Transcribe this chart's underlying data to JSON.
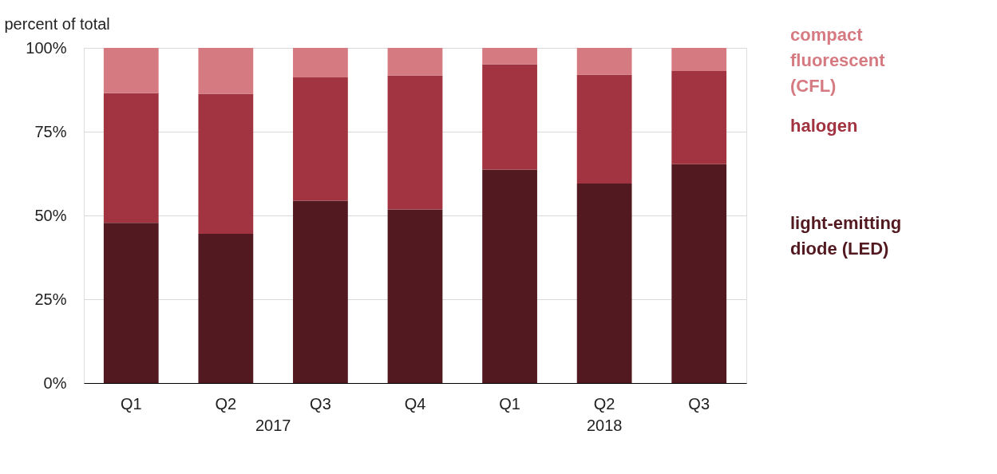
{
  "chart_data": {
    "type": "bar",
    "stacked": true,
    "ylabel": "percent of total",
    "categories": [
      "Q1",
      "Q2",
      "Q3",
      "Q4",
      "Q1",
      "Q2",
      "Q3"
    ],
    "series": [
      {
        "name": "light-emitting diode (LED)",
        "color": "#521a20",
        "values": [
          47.8,
          44.5,
          54.4,
          51.8,
          63.7,
          59.5,
          65.3
        ]
      },
      {
        "name": "halogen",
        "color": "#a23340",
        "values": [
          38.7,
          41.8,
          36.8,
          40.0,
          31.4,
          32.5,
          27.8
        ]
      },
      {
        "name": "compact fluorescent (CFL)",
        "color": "#d67a82",
        "values": [
          13.5,
          13.7,
          8.8,
          8.2,
          4.9,
          8.0,
          6.9
        ]
      }
    ],
    "ylim": [
      0,
      100
    ],
    "yticks": [
      {
        "value": 0,
        "label": "0%"
      },
      {
        "value": 25,
        "label": "25%"
      },
      {
        "value": 50,
        "label": "50%"
      },
      {
        "value": 75,
        "label": "75%"
      },
      {
        "value": 100,
        "label": "100%"
      }
    ],
    "grid": "y",
    "legend": "right",
    "annotations": [
      "2017",
      "2018"
    ]
  }
}
